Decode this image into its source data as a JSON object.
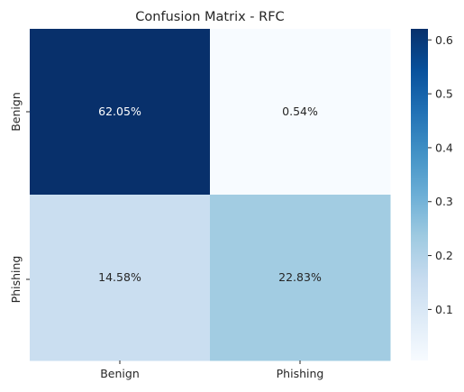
{
  "chart_data": {
    "type": "heatmap",
    "title": "Confusion Matrix - RFC",
    "x_categories": [
      "Benign",
      "Phishing"
    ],
    "y_categories": [
      "Benign",
      "Phishing"
    ],
    "values": [
      [
        0.6205,
        0.0054
      ],
      [
        0.1458,
        0.2283
      ]
    ],
    "cell_labels": [
      [
        "62.05%",
        "0.54%"
      ],
      [
        "14.58%",
        "22.83%"
      ]
    ],
    "colormap": "Blues",
    "colorbar": {
      "range": [
        0.0054,
        0.6205
      ],
      "ticks": [
        0.1,
        0.2,
        0.3,
        0.4,
        0.5,
        0.6
      ],
      "tick_labels": [
        "0.1",
        "0.2",
        "0.3",
        "0.4",
        "0.5",
        "0.6"
      ]
    }
  }
}
